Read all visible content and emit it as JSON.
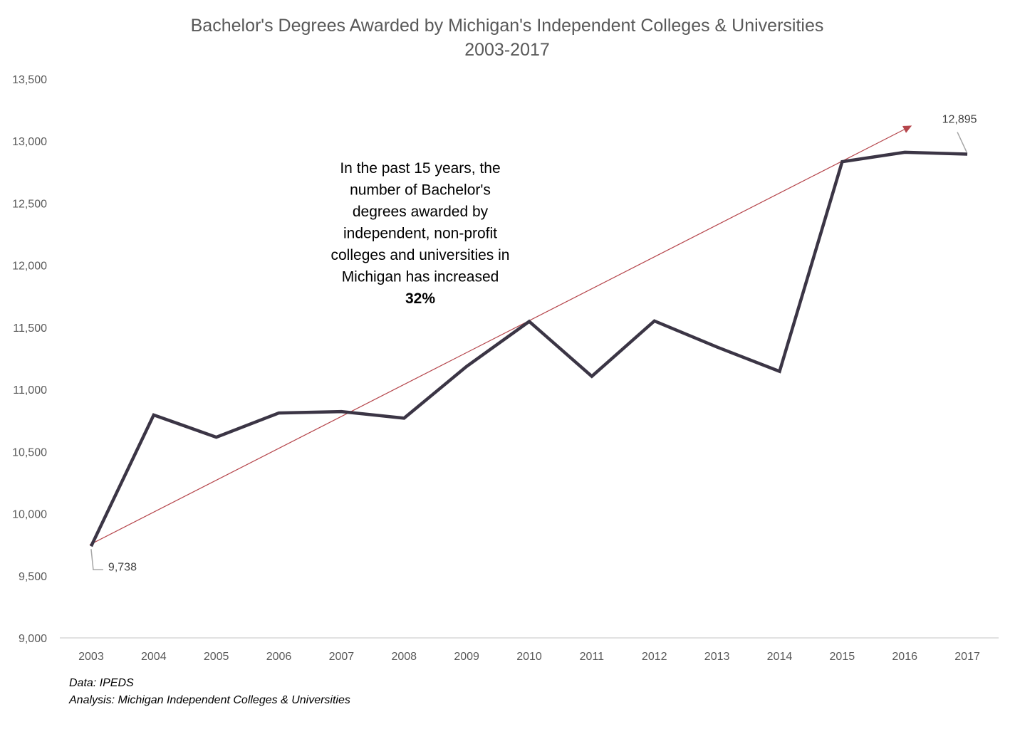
{
  "chart_data": {
    "type": "line",
    "title": "Bachelor's Degrees Awarded by Michigan's Independent  Colleges & Universities",
    "subtitle": "2003-2017",
    "xlabel": "",
    "ylabel": "",
    "categories": [
      "2003",
      "2004",
      "2005",
      "2006",
      "2007",
      "2008",
      "2009",
      "2010",
      "2011",
      "2012",
      "2013",
      "2014",
      "2015",
      "2016",
      "2017"
    ],
    "series": [
      {
        "values": [
          9738,
          10795,
          10616,
          10811,
          10822,
          10769,
          11186,
          11548,
          11106,
          11552,
          11342,
          11146,
          12834,
          12910,
          12895
        ],
        "color": "#3b3545"
      }
    ],
    "trendline": {
      "start": 9750,
      "end": 13125,
      "color": "#b5454b"
    },
    "ylim": [
      9000,
      13500
    ],
    "yticks": [
      9000,
      9500,
      10000,
      10500,
      11000,
      11500,
      12000,
      12500,
      13000,
      13500
    ],
    "ytick_labels": [
      "9,000",
      "9,500",
      "10,000",
      "10,500",
      "11,000",
      "11,500",
      "12,000",
      "12,500",
      "13,000",
      "13,500"
    ],
    "data_labels": {
      "first": "9,738",
      "last": "12,895"
    },
    "annotation": {
      "lines": [
        "In the past 15 years, the",
        "number of Bachelor's",
        "degrees awarded by",
        "independent, non-profit",
        "colleges and universities in",
        "Michigan has increased"
      ],
      "highlight": "32%"
    },
    "grid": false,
    "legend": "none"
  },
  "source": {
    "data": "Data: IPEDS",
    "analysis": "Analysis: Michigan Independent Colleges & Universities"
  }
}
